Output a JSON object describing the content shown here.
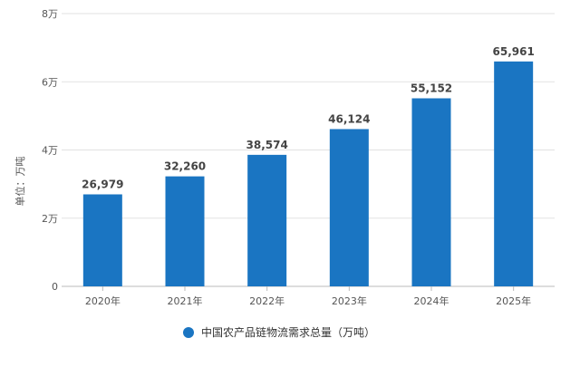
{
  "chart_data": {
    "type": "bar",
    "categories": [
      "2020年",
      "2021年",
      "2022年",
      "2023年",
      "2024年",
      "2025年"
    ],
    "series": [
      {
        "name": "中国农产品链物流需求总量（万吨）",
        "values": [
          26979,
          32260,
          38574,
          46124,
          55152,
          65961
        ]
      }
    ],
    "data_labels": [
      "26,979",
      "32,260",
      "38,574",
      "46,124",
      "55,152",
      "65,961"
    ],
    "ylabel": "单位：万吨",
    "xlabel": "",
    "ylim": [
      0,
      80000
    ],
    "yticks": [
      0,
      20000,
      40000,
      60000,
      80000
    ],
    "ytick_labels": [
      "0",
      "2万",
      "4万",
      "6万",
      "8万"
    ],
    "grid": true,
    "legend_position": "bottom",
    "color": "#1a75c2"
  }
}
